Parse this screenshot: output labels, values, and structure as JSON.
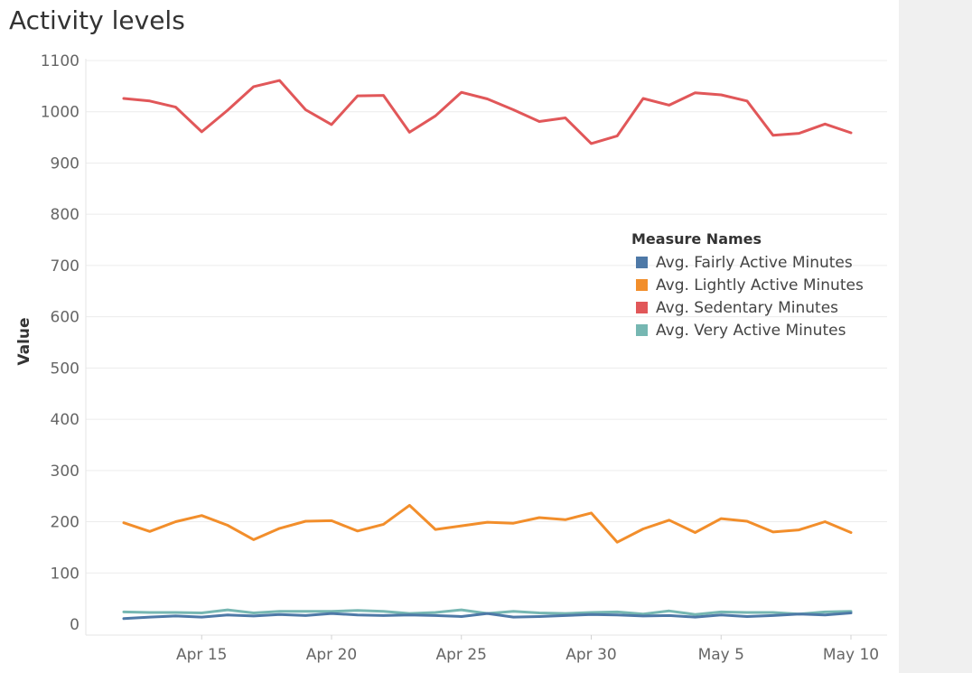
{
  "chart_data": {
    "type": "line",
    "title": "Activity levels",
    "xlabel": "",
    "ylabel": "Value",
    "ylim": [
      0,
      1100
    ],
    "yticks": [
      0,
      100,
      200,
      300,
      400,
      500,
      600,
      700,
      800,
      900,
      1000,
      1100
    ],
    "xticks": [
      {
        "date": "2016-04-15",
        "label": "Apr 15"
      },
      {
        "date": "2016-04-20",
        "label": "Apr 20"
      },
      {
        "date": "2016-04-25",
        "label": "Apr 25"
      },
      {
        "date": "2016-04-30",
        "label": "Apr 30"
      },
      {
        "date": "2016-05-05",
        "label": "May 5"
      },
      {
        "date": "2016-05-10",
        "label": "May 10"
      }
    ],
    "xlim": [
      "2016-04-11",
      "2016-05-11"
    ],
    "grid": true,
    "legend_title": "Measure Names",
    "legend_position": "right",
    "x": [
      "2016-04-12",
      "2016-04-13",
      "2016-04-14",
      "2016-04-15",
      "2016-04-16",
      "2016-04-17",
      "2016-04-18",
      "2016-04-19",
      "2016-04-20",
      "2016-04-21",
      "2016-04-22",
      "2016-04-23",
      "2016-04-24",
      "2016-04-25",
      "2016-04-26",
      "2016-04-27",
      "2016-04-28",
      "2016-04-29",
      "2016-04-30",
      "2016-05-01",
      "2016-05-02",
      "2016-05-03",
      "2016-05-04",
      "2016-05-05",
      "2016-05-06",
      "2016-05-07",
      "2016-05-08",
      "2016-05-09",
      "2016-05-10"
    ],
    "series": [
      {
        "name": "Avg. Fairly Active Minutes",
        "color": "#4e79a7",
        "values": [
          11,
          14,
          16,
          14,
          18,
          16,
          19,
          17,
          21,
          18,
          17,
          18,
          17,
          15,
          21,
          14,
          15,
          17,
          19,
          18,
          16,
          17,
          14,
          18,
          15,
          17,
          20,
          18,
          22
        ]
      },
      {
        "name": "Avg. Lightly Active Minutes",
        "color": "#f28e2b",
        "values": [
          198,
          181,
          200,
          212,
          193,
          165,
          187,
          201,
          202,
          182,
          195,
          232,
          185,
          192,
          199,
          197,
          208,
          204,
          217,
          160,
          186,
          203,
          179,
          206,
          201,
          180,
          184,
          200,
          179
        ]
      },
      {
        "name": "Avg. Sedentary Minutes",
        "color": "#e15759",
        "values": [
          1026,
          1021,
          1009,
          961,
          1003,
          1049,
          1061,
          1004,
          975,
          1031,
          1032,
          960,
          992,
          1038,
          1025,
          1004,
          981,
          988,
          938,
          953,
          1026,
          1013,
          1037,
          1033,
          1021,
          954,
          958,
          976,
          959
        ]
      },
      {
        "name": "Avg. Very Active Minutes",
        "color": "#76b7b2",
        "values": [
          24,
          23,
          23,
          22,
          28,
          22,
          25,
          25,
          25,
          27,
          25,
          21,
          23,
          28,
          21,
          25,
          22,
          21,
          23,
          24,
          20,
          26,
          19,
          24,
          23,
          23,
          20,
          24,
          25
        ]
      }
    ]
  }
}
